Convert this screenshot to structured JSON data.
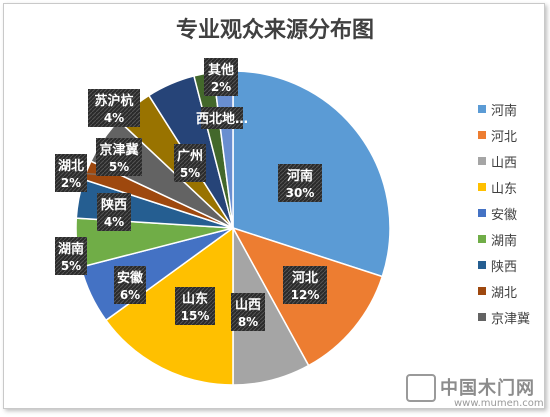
{
  "chart_data": {
    "type": "pie",
    "title": "专业观众来源分布图",
    "categories": [
      "河南",
      "河北",
      "山西",
      "山东",
      "安徽",
      "湖南",
      "陕西",
      "湖北",
      "京津冀",
      "苏沪杭",
      "广州",
      "西北地区",
      "其他"
    ],
    "values": [
      30,
      12,
      8,
      15,
      6,
      5,
      4,
      2,
      5,
      4,
      5,
      2,
      2
    ],
    "labels": [
      "河南",
      "河北",
      "山西",
      "山东",
      "安徽",
      "湖南",
      "陕西",
      "湖北",
      "京津冀",
      "苏沪杭",
      "广州",
      "西北地…",
      "其他"
    ],
    "value_labels": [
      "30%",
      "12%",
      "8%",
      "15%",
      "6%",
      "5%",
      "4%",
      "2%",
      "5%",
      "4%",
      "5%",
      "",
      "2%"
    ],
    "colors": [
      "#5B9BD5",
      "#ED7D31",
      "#A5A5A5",
      "#FFC000",
      "#4472C4",
      "#70AD47",
      "#255E91",
      "#9E480E",
      "#636363",
      "#997300",
      "#264478",
      "#43682B",
      "#698ED0"
    ],
    "legend": {
      "position": "right",
      "entries": [
        "河南",
        "河北",
        "山西",
        "山东",
        "安徽",
        "湖南",
        "陕西",
        "湖北",
        "京津冀"
      ]
    }
  },
  "watermark": {
    "name": "中国木门网",
    "url": "www.mumen.com"
  }
}
